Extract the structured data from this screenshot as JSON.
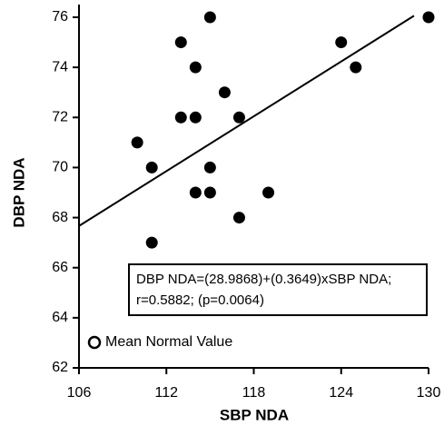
{
  "chart_data": {
    "type": "scatter",
    "x_label": "SBP NDA",
    "y_label": "DBP NDA",
    "series": [
      {
        "color": "#000000",
        "x": [
          115,
          130,
          113,
          124,
          114,
          125,
          116,
          113,
          114,
          117,
          110,
          111,
          115,
          114,
          115,
          119,
          117,
          111
        ],
        "values": [
          76,
          76,
          75,
          75,
          74,
          74,
          73,
          72,
          72,
          72,
          71,
          70,
          70,
          69,
          69,
          69,
          68,
          67
        ]
      }
    ],
    "fit": {
      "intercept": 28.9868,
      "slope": 0.3649,
      "xrange": [
        106,
        129
      ]
    },
    "annotation": [
      "DBP NDA=(28.9868)+(0.3649)xSBP NDA;",
      "r=0.5882; (p=0.0064)"
    ],
    "legend": {
      "label": "Mean Normal Value",
      "marker": "open-circle"
    },
    "xlim": [
      106,
      130
    ],
    "xticks": [
      106,
      112,
      118,
      124,
      130
    ],
    "ylim": [
      62,
      76
    ],
    "yticks": [
      62,
      64,
      66,
      68,
      70,
      72,
      74,
      76
    ]
  }
}
